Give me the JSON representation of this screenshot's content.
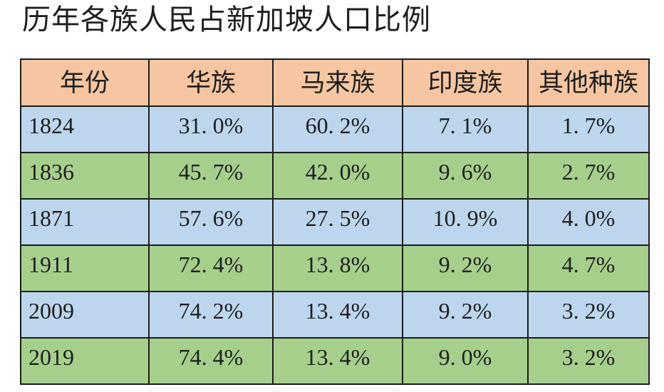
{
  "page": {
    "title": "历年各族人民占新加坡人口比例"
  },
  "colors": {
    "header_bg": "#f6c6a2",
    "row_blue": "#bdd6ee",
    "row_green": "#a6cf8c",
    "border": "#1c1c1c",
    "text": "#1e1e1e",
    "page_bg": "#ffffff"
  },
  "table": {
    "headers": [
      "年份",
      "华族",
      "马来族",
      "印度族",
      "其他种族"
    ],
    "rows": [
      {
        "year": "1824",
        "values": [
          "31. 0%",
          "60. 2%",
          "7. 1%",
          "1. 7%"
        ],
        "bg": "blue"
      },
      {
        "year": "1836",
        "values": [
          "45. 7%",
          "42. 0%",
          "9. 6%",
          "2. 7%"
        ],
        "bg": "green"
      },
      {
        "year": "1871",
        "values": [
          "57. 6%",
          "27. 5%",
          "10. 9%",
          "4. 0%"
        ],
        "bg": "blue"
      },
      {
        "year": "1911",
        "values": [
          "72. 4%",
          "13. 8%",
          "9. 2%",
          "4. 7%"
        ],
        "bg": "green"
      },
      {
        "year": "2009",
        "values": [
          "74. 2%",
          "13. 4%",
          "9. 2%",
          "3. 2%"
        ],
        "bg": "blue"
      },
      {
        "year": "2019",
        "values": [
          "74. 4%",
          "13. 4%",
          "9. 0%",
          "3. 2%"
        ],
        "bg": "green"
      }
    ]
  },
  "chart_data": {
    "type": "table",
    "title": "历年各族人民占新加坡人口比例",
    "columns": [
      "年份",
      "华族",
      "马来族",
      "印度族",
      "其他种族"
    ],
    "categories": [
      "1824",
      "1836",
      "1871",
      "1911",
      "2009",
      "2019"
    ],
    "unit": "%",
    "series": [
      {
        "name": "华族",
        "values": [
          31.0,
          45.7,
          57.6,
          72.4,
          74.2,
          74.4
        ]
      },
      {
        "name": "马来族",
        "values": [
          60.2,
          42.0,
          27.5,
          13.8,
          13.4,
          13.4
        ]
      },
      {
        "name": "印度族",
        "values": [
          7.1,
          9.6,
          10.9,
          9.2,
          9.2,
          9.0
        ]
      },
      {
        "name": "其他种族",
        "values": [
          1.7,
          2.7,
          4.0,
          4.7,
          3.2,
          3.2
        ]
      }
    ],
    "row_background_pattern": [
      "blue",
      "green",
      "blue",
      "green",
      "blue",
      "green"
    ],
    "header_background": "#f6c6a2"
  }
}
